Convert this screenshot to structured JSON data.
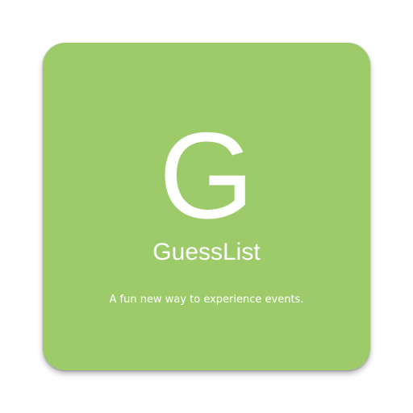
{
  "app_icon": {
    "letter": "G",
    "name": "GuessList",
    "tagline": "A fun new way to experience events.",
    "background_color": "#9dcb69",
    "text_color": "#ffffff"
  }
}
